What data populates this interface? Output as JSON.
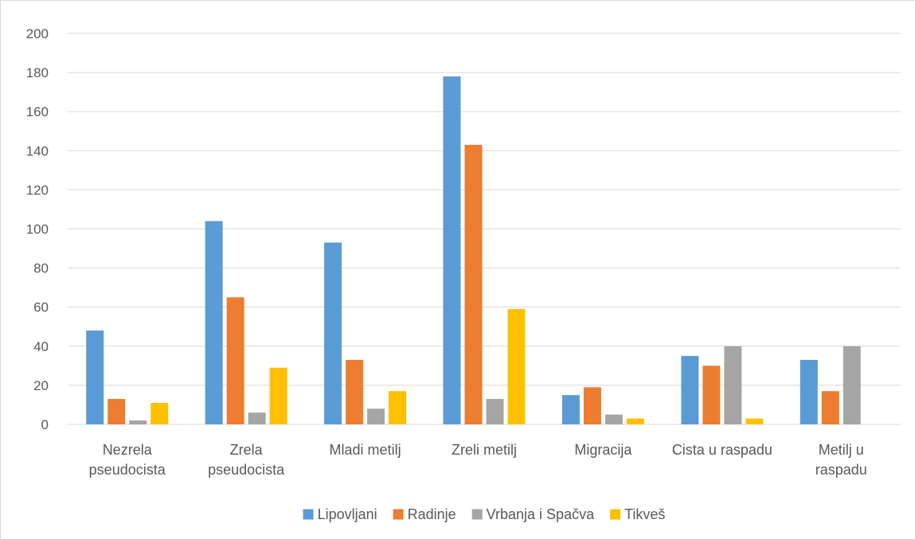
{
  "chart_data": {
    "type": "bar",
    "categories": [
      [
        "Nezrela",
        "pseudocista"
      ],
      [
        "Zrela",
        "pseudocista"
      ],
      [
        "Mladi metilj"
      ],
      [
        "Zreli metilj"
      ],
      [
        "Migracija"
      ],
      [
        "Cista u raspadu"
      ],
      [
        "Metilj u",
        "raspadu"
      ]
    ],
    "series": [
      {
        "name": "Lipovljani",
        "color": "#5b9bd5",
        "values": [
          48,
          104,
          93,
          178,
          15,
          35,
          33
        ]
      },
      {
        "name": "Radinje",
        "color": "#ed7d31",
        "values": [
          13,
          65,
          33,
          143,
          19,
          30,
          17
        ]
      },
      {
        "name": "Vrbanja i Spačva",
        "color": "#a5a5a5",
        "values": [
          2,
          6,
          8,
          13,
          5,
          40,
          40
        ]
      },
      {
        "name": "Tikveš",
        "color": "#ffc000",
        "values": [
          11,
          29,
          17,
          59,
          3,
          3,
          0
        ]
      }
    ],
    "ylim": [
      0,
      200
    ],
    "yticks": [
      0,
      20,
      40,
      60,
      80,
      100,
      120,
      140,
      160,
      180,
      200
    ],
    "grid": true,
    "legend_position": "bottom",
    "gridline_color": "#d9d9d9",
    "axis_label_color": "#595959"
  }
}
